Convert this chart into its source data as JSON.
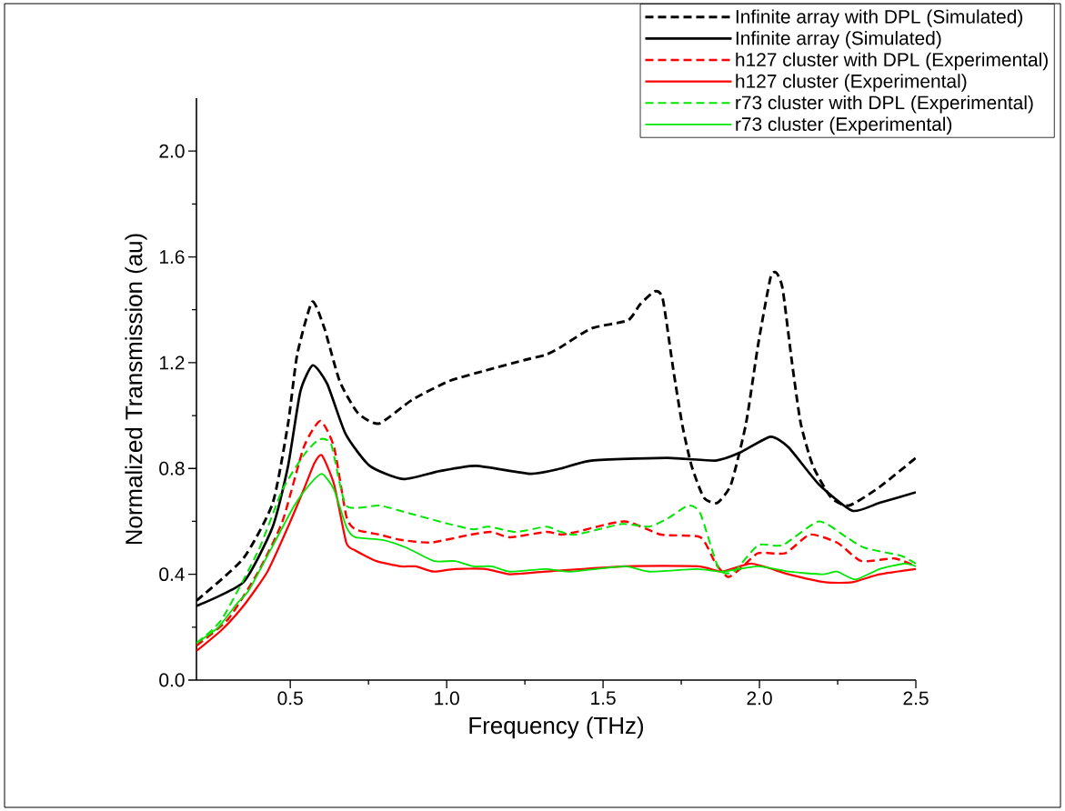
{
  "chart_data": {
    "type": "line",
    "xlabel": "Frequency (THz)",
    "ylabel": "Normalized Transmission (au)",
    "xlim": [
      0.2,
      2.5
    ],
    "ylim": [
      0,
      2.2
    ],
    "xticks": [
      0.5,
      {
        "value": 1,
        "label": "1.0"
      },
      1.5,
      {
        "value": 2,
        "label": "2.0"
      },
      2.5
    ],
    "yticks": [
      {
        "value": 0,
        "label": "0.0"
      },
      0.4,
      0.8,
      1.2,
      1.6,
      {
        "value": 2,
        "label": "2.0"
      }
    ],
    "legend": "top right",
    "series": [
      {
        "name": "Infinite array with DPL (Simulated)",
        "color": "#000000",
        "line_style": "dashed",
        "x": [
          0.2,
          0.35,
          0.444,
          0.493,
          0.522,
          0.57,
          0.609,
          0.658,
          0.716,
          0.784,
          0.89,
          1.007,
          1.123,
          1.249,
          1.317,
          1.366,
          1.463,
          1.579,
          1.618,
          1.666,
          1.691,
          1.725,
          1.754,
          1.783,
          1.822,
          1.865,
          1.909,
          1.957,
          1.996,
          2.035,
          2.054,
          2.074,
          2.103,
          2.132,
          2.171,
          2.229,
          2.287,
          2.384,
          2.5
        ],
        "values": [
          0.3,
          0.46,
          0.67,
          0.97,
          1.23,
          1.43,
          1.33,
          1.13,
          1.01,
          0.97,
          1.06,
          1.13,
          1.17,
          1.21,
          1.23,
          1.26,
          1.33,
          1.36,
          1.42,
          1.47,
          1.44,
          1.17,
          0.96,
          0.81,
          0.69,
          0.67,
          0.74,
          0.97,
          1.27,
          1.52,
          1.54,
          1.48,
          1.21,
          0.97,
          0.81,
          0.69,
          0.66,
          0.73,
          0.84
        ]
      },
      {
        "name": "Infinite array (Simulated)",
        "color": "#000000",
        "line_style": "solid",
        "x": [
          0.2,
          0.35,
          0.444,
          0.493,
          0.532,
          0.572,
          0.618,
          0.677,
          0.754,
          0.861,
          0.977,
          1.094,
          1.268,
          1.366,
          1.463,
          1.705,
          1.86,
          1.938,
          2.035,
          2.093,
          2.19,
          2.297,
          2.384,
          2.5
        ],
        "values": [
          0.28,
          0.37,
          0.58,
          0.81,
          1.09,
          1.19,
          1.12,
          0.93,
          0.81,
          0.76,
          0.79,
          0.81,
          0.78,
          0.8,
          0.83,
          0.84,
          0.83,
          0.86,
          0.92,
          0.88,
          0.74,
          0.64,
          0.67,
          0.71
        ]
      },
      {
        "name": "h127 cluster with DPL (Experimental)",
        "color": "#ff0000",
        "line_style": "dashed",
        "x": [
          0.2,
          0.301,
          0.398,
          0.475,
          0.543,
          0.596,
          0.64,
          0.679,
          0.708,
          0.785,
          0.853,
          0.95,
          1.076,
          1.144,
          1.202,
          1.318,
          1.366,
          1.414,
          1.569,
          1.685,
          1.811,
          1.86,
          1.899,
          1.938,
          1.996,
          2.083,
          2.161,
          2.248,
          2.326,
          2.432,
          2.5
        ],
        "values": [
          0.13,
          0.23,
          0.41,
          0.6,
          0.88,
          0.98,
          0.88,
          0.62,
          0.57,
          0.55,
          0.53,
          0.52,
          0.55,
          0.56,
          0.54,
          0.56,
          0.55,
          0.56,
          0.6,
          0.55,
          0.54,
          0.44,
          0.39,
          0.42,
          0.48,
          0.48,
          0.55,
          0.52,
          0.45,
          0.46,
          0.43
        ]
      },
      {
        "name": "h127 cluster (Experimental)",
        "color": "#ff0000",
        "line_style": "solid",
        "x": [
          0.2,
          0.281,
          0.35,
          0.427,
          0.493,
          0.543,
          0.577,
          0.601,
          0.64,
          0.679,
          0.708,
          0.776,
          0.853,
          0.901,
          0.959,
          1.027,
          1.124,
          1.202,
          1.318,
          1.569,
          1.802,
          1.88,
          1.976,
          2.093,
          2.21,
          2.297,
          2.384,
          2.5
        ],
        "values": [
          0.11,
          0.19,
          0.28,
          0.41,
          0.58,
          0.72,
          0.82,
          0.85,
          0.74,
          0.52,
          0.49,
          0.45,
          0.43,
          0.43,
          0.41,
          0.42,
          0.42,
          0.4,
          0.41,
          0.43,
          0.43,
          0.41,
          0.44,
          0.4,
          0.37,
          0.37,
          0.4,
          0.42
        ]
      },
      {
        "name": "r73 cluster with DPL (Experimental)",
        "color": "#00e600",
        "line_style": "dashed",
        "x": [
          0.2,
          0.281,
          0.398,
          0.475,
          0.543,
          0.592,
          0.631,
          0.679,
          0.785,
          0.882,
          1.008,
          1.085,
          1.134,
          1.221,
          1.318,
          1.366,
          1.414,
          1.56,
          1.647,
          1.705,
          1.773,
          1.811,
          1.87,
          1.918,
          1.996,
          2.074,
          2.19,
          2.278,
          2.336,
          2.452,
          2.5
        ],
        "values": [
          0.14,
          0.23,
          0.49,
          0.72,
          0.85,
          0.91,
          0.89,
          0.66,
          0.66,
          0.63,
          0.59,
          0.57,
          0.58,
          0.56,
          0.58,
          0.56,
          0.55,
          0.59,
          0.58,
          0.61,
          0.66,
          0.63,
          0.42,
          0.41,
          0.51,
          0.51,
          0.6,
          0.54,
          0.5,
          0.47,
          0.44
        ]
      },
      {
        "name": "r73 cluster (Experimental)",
        "color": "#00e600",
        "line_style": "solid",
        "x": [
          0.2,
          0.27,
          0.33,
          0.368,
          0.445,
          0.513,
          0.562,
          0.601,
          0.64,
          0.679,
          0.708,
          0.795,
          0.872,
          0.959,
          1.027,
          1.085,
          1.144,
          1.202,
          1.318,
          1.395,
          1.569,
          1.647,
          1.802,
          1.88,
          1.996,
          2.093,
          2.2,
          2.248,
          2.307,
          2.384,
          2.462,
          2.5
        ],
        "values": [
          0.14,
          0.2,
          0.29,
          0.34,
          0.51,
          0.66,
          0.74,
          0.78,
          0.72,
          0.58,
          0.54,
          0.53,
          0.5,
          0.45,
          0.45,
          0.43,
          0.43,
          0.41,
          0.42,
          0.41,
          0.43,
          0.41,
          0.42,
          0.41,
          0.43,
          0.41,
          0.4,
          0.41,
          0.38,
          0.42,
          0.44,
          0.43
        ]
      }
    ]
  }
}
